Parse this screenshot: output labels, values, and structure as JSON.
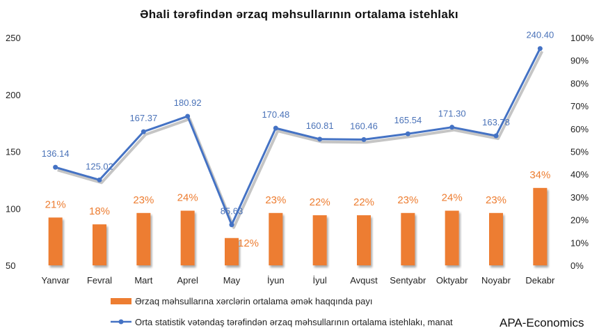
{
  "chart_data": {
    "type": "bar+line",
    "title": "Əhali tərəfindən ərzaq məhsullarının ortalama istehlakı",
    "categories": [
      "Yanvar",
      "Fevral",
      "Mart",
      "Aprel",
      "May",
      "İyun",
      "İyul",
      "Avqust",
      "Sentyabr",
      "Oktyabr",
      "Noyabr",
      "Dekabr"
    ],
    "series": [
      {
        "name": "Ərzaq məhsullarına xərclərin ortalama əmək haqqında payı",
        "type": "bar",
        "axis": "right",
        "color": "#ed7d31",
        "values": [
          21,
          18,
          23,
          24,
          12,
          23,
          22,
          22,
          23,
          24,
          23,
          34
        ],
        "labels": [
          "21%",
          "18%",
          "23%",
          "24%",
          "12%",
          "23%",
          "22%",
          "22%",
          "23%",
          "24%",
          "23%",
          "34%"
        ]
      },
      {
        "name": "Orta statistik vətəndaş tərəfindən ərzaq məhsullarının ortalama istehlakı, manat",
        "type": "line",
        "axis": "left",
        "color": "#4472c4",
        "values": [
          136.14,
          125.02,
          167.37,
          180.92,
          85.63,
          170.48,
          160.81,
          160.46,
          165.54,
          171.3,
          163.78,
          240.4
        ],
        "labels": [
          "136.14",
          "125.02",
          "167.37",
          "180.92",
          "85.63",
          "170.48",
          "160.81",
          "160.46",
          "165.54",
          "171.30",
          "163.78",
          "240.40"
        ]
      }
    ],
    "y_left": {
      "min": 50,
      "max": 250,
      "ticks": [
        "50",
        "100",
        "150",
        "200",
        "250"
      ]
    },
    "y_right": {
      "min": 0,
      "max": 100,
      "ticks": [
        "0%",
        "10%",
        "20%",
        "30%",
        "40%",
        "50%",
        "60%",
        "70%",
        "80%",
        "90%",
        "100%"
      ]
    },
    "grid": false,
    "legend_position": "bottom-left"
  },
  "branding": "APA-Economics"
}
